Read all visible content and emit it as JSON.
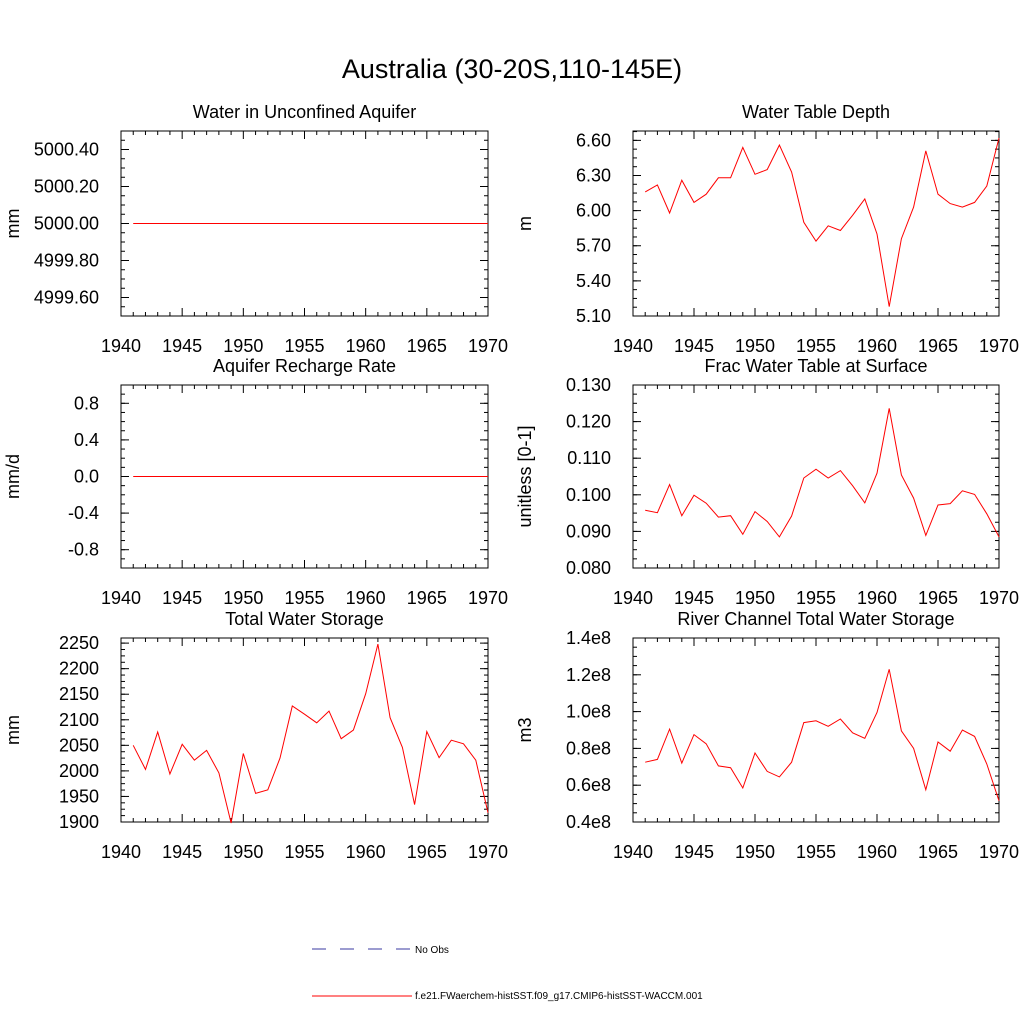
{
  "title": "Australia (30-20S,110-145E)",
  "legend": [
    {
      "label": "No Obs",
      "color": "#3a3aa0",
      "style": "dashed"
    },
    {
      "label": "f.e21.FWaerchem-histSST.f09_g17.CMIP6-histSST-WACCM.001",
      "color": "#ff0000",
      "style": "solid"
    }
  ],
  "chart_data": [
    {
      "type": "line",
      "title": "Water in Unconfined Aquifer",
      "ylabel": "mm",
      "xlim": [
        1940,
        1970
      ],
      "ylim": [
        4999.5,
        5000.5
      ],
      "xticks": [
        1940,
        1945,
        1950,
        1955,
        1960,
        1965,
        1970
      ],
      "yticks": [
        4999.6,
        4999.8,
        5000.0,
        5000.2,
        5000.4
      ],
      "ytick_labels": [
        "4999.60",
        "4999.80",
        "5000.00",
        "5000.20",
        "5000.40"
      ],
      "series": [
        {
          "name": "f.e21.FWaerchem-histSST.f09_g17.CMIP6-histSST-WACCM.001",
          "color": "#ff0000",
          "x": [
            1941,
            1942,
            1943,
            1944,
            1945,
            1946,
            1947,
            1948,
            1949,
            1950,
            1951,
            1952,
            1953,
            1954,
            1955,
            1956,
            1957,
            1958,
            1959,
            1960,
            1961,
            1962,
            1963,
            1964,
            1965,
            1966,
            1967,
            1968,
            1969,
            1970
          ],
          "y": [
            5000,
            5000,
            5000,
            5000,
            5000,
            5000,
            5000,
            5000,
            5000,
            5000,
            5000,
            5000,
            5000,
            5000,
            5000,
            5000,
            5000,
            5000,
            5000,
            5000,
            5000,
            5000,
            5000,
            5000,
            5000,
            5000,
            5000,
            5000,
            5000,
            5000
          ]
        }
      ]
    },
    {
      "type": "line",
      "title": "Water Table Depth",
      "ylabel": "m",
      "xlim": [
        1940,
        1970
      ],
      "ylim": [
        5.1,
        6.68
      ],
      "xticks": [
        1940,
        1945,
        1950,
        1955,
        1960,
        1965,
        1970
      ],
      "yticks": [
        5.1,
        5.4,
        5.7,
        6.0,
        6.3,
        6.6
      ],
      "ytick_labels": [
        "5.10",
        "5.40",
        "5.70",
        "6.00",
        "6.30",
        "6.60"
      ],
      "series": [
        {
          "name": "f.e21.FWaerchem-histSST.f09_g17.CMIP6-histSST-WACCM.001",
          "color": "#ff0000",
          "x": [
            1941,
            1942,
            1943,
            1944,
            1945,
            1946,
            1947,
            1948,
            1949,
            1950,
            1951,
            1952,
            1953,
            1954,
            1955,
            1956,
            1957,
            1958,
            1959,
            1960,
            1961,
            1962,
            1963,
            1964,
            1965,
            1966,
            1967,
            1968,
            1969,
            1970
          ],
          "y": [
            6.16,
            6.22,
            5.98,
            6.26,
            6.07,
            6.14,
            6.28,
            6.28,
            6.54,
            6.31,
            6.35,
            6.56,
            6.33,
            5.9,
            5.74,
            5.87,
            5.83,
            5.96,
            6.1,
            5.8,
            5.18,
            5.76,
            6.03,
            6.51,
            6.14,
            6.06,
            6.03,
            6.07,
            6.21,
            6.62
          ]
        }
      ]
    },
    {
      "type": "line",
      "title": "Aquifer Recharge Rate",
      "ylabel": "mm/d",
      "xlim": [
        1940,
        1970
      ],
      "ylim": [
        -1.0,
        1.0
      ],
      "xticks": [
        1940,
        1945,
        1950,
        1955,
        1960,
        1965,
        1970
      ],
      "yticks": [
        -0.8,
        -0.4,
        0.0,
        0.4,
        0.8
      ],
      "ytick_labels": [
        "-0.8",
        "-0.4",
        "0.0",
        "0.4",
        "0.8"
      ],
      "series": [
        {
          "name": "f.e21.FWaerchem-histSST.f09_g17.CMIP6-histSST-WACCM.001",
          "color": "#ff0000",
          "x": [
            1941,
            1942,
            1943,
            1944,
            1945,
            1946,
            1947,
            1948,
            1949,
            1950,
            1951,
            1952,
            1953,
            1954,
            1955,
            1956,
            1957,
            1958,
            1959,
            1960,
            1961,
            1962,
            1963,
            1964,
            1965,
            1966,
            1967,
            1968,
            1969,
            1970
          ],
          "y": [
            0,
            0,
            0,
            0,
            0,
            0,
            0,
            0,
            0,
            0,
            0,
            0,
            0,
            0,
            0,
            0,
            0,
            0,
            0,
            0,
            0,
            0,
            0,
            0,
            0,
            0,
            0,
            0,
            0,
            0
          ]
        }
      ]
    },
    {
      "type": "line",
      "title": "Frac Water Table at Surface",
      "ylabel": "unitless [0-1]",
      "xlim": [
        1940,
        1970
      ],
      "ylim": [
        0.08,
        0.13
      ],
      "xticks": [
        1940,
        1945,
        1950,
        1955,
        1960,
        1965,
        1970
      ],
      "yticks": [
        0.08,
        0.09,
        0.1,
        0.11,
        0.12,
        0.13
      ],
      "ytick_labels": [
        "0.080",
        "0.090",
        "0.100",
        "0.110",
        "0.120",
        "0.130"
      ],
      "series": [
        {
          "name": "f.e21.FWaerchem-histSST.f09_g17.CMIP6-histSST-WACCM.001",
          "color": "#ff0000",
          "x": [
            1941,
            1942,
            1943,
            1944,
            1945,
            1946,
            1947,
            1948,
            1949,
            1950,
            1951,
            1952,
            1953,
            1954,
            1955,
            1956,
            1957,
            1958,
            1959,
            1960,
            1961,
            1962,
            1963,
            1964,
            1965,
            1966,
            1967,
            1968,
            1969,
            1970
          ],
          "y": [
            0.0958,
            0.0951,
            0.1028,
            0.0943,
            0.0999,
            0.0977,
            0.0939,
            0.0943,
            0.0892,
            0.0954,
            0.0927,
            0.0885,
            0.0942,
            0.1046,
            0.107,
            0.1046,
            0.1066,
            0.1025,
            0.0978,
            0.1059,
            0.1236,
            0.1054,
            0.0991,
            0.0889,
            0.0972,
            0.0976,
            0.1011,
            0.1001,
            0.0948,
            0.0885
          ]
        }
      ]
    },
    {
      "type": "line",
      "title": "Total Water Storage",
      "ylabel": "mm",
      "xlim": [
        1940,
        1970
      ],
      "ylim": [
        1900,
        2260
      ],
      "xticks": [
        1940,
        1945,
        1950,
        1955,
        1960,
        1965,
        1970
      ],
      "yticks": [
        1900,
        1950,
        2000,
        2050,
        2100,
        2150,
        2200,
        2250
      ],
      "ytick_labels": [
        "1900",
        "1950",
        "2000",
        "2050",
        "2100",
        "2150",
        "2200",
        "2250"
      ],
      "series": [
        {
          "name": "f.e21.FWaerchem-histSST.f09_g17.CMIP6-histSST-WACCM.001",
          "color": "#ff0000",
          "x": [
            1941,
            1942,
            1943,
            1944,
            1945,
            1946,
            1947,
            1948,
            1949,
            1950,
            1951,
            1952,
            1953,
            1954,
            1955,
            1956,
            1957,
            1958,
            1959,
            1960,
            1961,
            1962,
            1963,
            1964,
            1965,
            1966,
            1967,
            1968,
            1969,
            1970
          ],
          "y": [
            2050,
            2003,
            2076,
            1994,
            2052,
            2021,
            2040,
            1996,
            1898,
            2034,
            1956,
            1963,
            2025,
            2127,
            2111,
            2094,
            2117,
            2063,
            2080,
            2151,
            2248,
            2104,
            2046,
            1934,
            2077,
            2026,
            2060,
            2053,
            2021,
            1918
          ]
        }
      ]
    },
    {
      "type": "line",
      "title": "River Channel Total Water Storage",
      "ylabel": "m3",
      "xlim": [
        1940,
        1970
      ],
      "ylim": [
        40000000,
        140000000
      ],
      "xticks": [
        1940,
        1945,
        1950,
        1955,
        1960,
        1965,
        1970
      ],
      "yticks": [
        40000000,
        60000000,
        80000000,
        100000000,
        120000000,
        140000000
      ],
      "ytick_labels": [
        "0.4e8",
        "0.6e8",
        "0.8e8",
        "1.0e8",
        "1.2e8",
        "1.4e8"
      ],
      "series": [
        {
          "name": "f.e21.FWaerchem-histSST.f09_g17.CMIP6-histSST-WACCM.001",
          "color": "#ff0000",
          "x": [
            1941,
            1942,
            1943,
            1944,
            1945,
            1946,
            1947,
            1948,
            1949,
            1950,
            1951,
            1952,
            1953,
            1954,
            1955,
            1956,
            1957,
            1958,
            1959,
            1960,
            1961,
            1962,
            1963,
            1964,
            1965,
            1966,
            1967,
            1968,
            1969,
            1970
          ],
          "y": [
            72500000,
            74000000,
            90500000,
            72000000,
            87500000,
            82500000,
            70500000,
            69500000,
            58500000,
            77500000,
            67500000,
            64500000,
            72500000,
            94000000,
            95000000,
            92000000,
            96000000,
            88500000,
            85500000,
            99500000,
            123000000,
            89500000,
            80000000,
            57500000,
            83500000,
            78500000,
            90000000,
            86500000,
            71500000,
            51500000
          ]
        }
      ]
    }
  ]
}
